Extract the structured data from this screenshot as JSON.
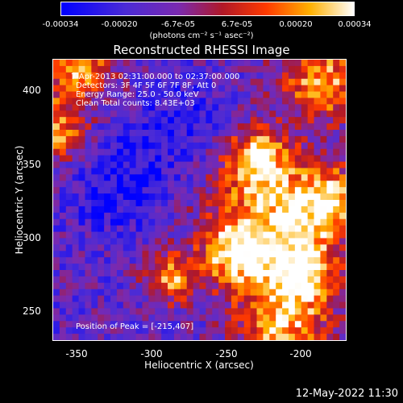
{
  "colorbar": {
    "tick_labels": [
      "-0.00034",
      "-0.00020",
      "-6.7e-05",
      "6.7e-05",
      "0.00020",
      "0.00034"
    ],
    "units": "(photons cm⁻² s⁻¹ asec⁻²)",
    "range": [
      -0.00034,
      0.00034
    ]
  },
  "title": "Reconstructed RHESSI Image",
  "overlay": {
    "time": "7-Apr-2013 02:31:00.000 to 02:37:00.000",
    "detectors": "Detectors: 3F 4F 5F 6F 7F 8F, Att 0",
    "energy": "Energy Range: 25.0 - 50.0 keV",
    "clean": "Clean     Total counts: 8.43E+03",
    "peak": "Position of Peak = [-215,407]"
  },
  "chart_data": {
    "type": "heatmap",
    "title": "Reconstructed RHESSI Image",
    "xlabel": "Heliocentric X (arcsec)",
    "ylabel": "Heliocentric Y (arcsec)",
    "xlim": [
      -372,
      -176
    ],
    "ylim": [
      228,
      420
    ],
    "x_ticks": [
      "-350",
      "-300",
      "-250",
      "-200"
    ],
    "y_ticks": [
      "250",
      "300",
      "350",
      "400"
    ],
    "colormap": [
      "#0000ff",
      "#5a2ad0",
      "#8a2aa0",
      "#c01010",
      "#ff5a00",
      "#ffc000",
      "#ffffff"
    ],
    "peak_position": [
      -215,
      407
    ]
  },
  "timestamp": "12-May-2022 11:30"
}
